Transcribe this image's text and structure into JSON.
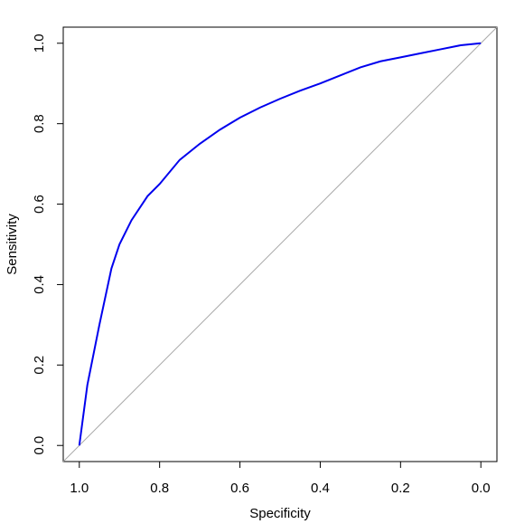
{
  "chart_data": {
    "type": "line",
    "x_label": "Specificity",
    "y_label": "Sensitivity",
    "x": [
      1.0,
      0.98,
      0.95,
      0.92,
      0.9,
      0.87,
      0.83,
      0.8,
      0.75,
      0.7,
      0.65,
      0.6,
      0.55,
      0.5,
      0.45,
      0.4,
      0.35,
      0.3,
      0.25,
      0.2,
      0.15,
      0.1,
      0.05,
      0.0
    ],
    "series": [
      {
        "color": "#0000ee",
        "values": [
          0.0,
          0.15,
          0.3,
          0.44,
          0.5,
          0.56,
          0.62,
          0.65,
          0.71,
          0.75,
          0.785,
          0.815,
          0.84,
          0.862,
          0.882,
          0.9,
          0.92,
          0.94,
          0.955,
          0.965,
          0.975,
          0.985,
          0.995,
          1.0
        ]
      }
    ],
    "xlim": [
      1.04,
      -0.04
    ],
    "ylim": [
      -0.04,
      1.04
    ],
    "xticks": [
      {
        "value": 1,
        "label": "1.0"
      },
      0.8,
      0.6,
      0.4,
      0.2,
      {
        "value": 0,
        "label": "0.0"
      }
    ],
    "yticks": [
      {
        "value": 0,
        "label": "0.0"
      },
      0.2,
      0.4,
      0.6,
      0.8,
      {
        "value": 1,
        "label": "1.0"
      }
    ]
  }
}
